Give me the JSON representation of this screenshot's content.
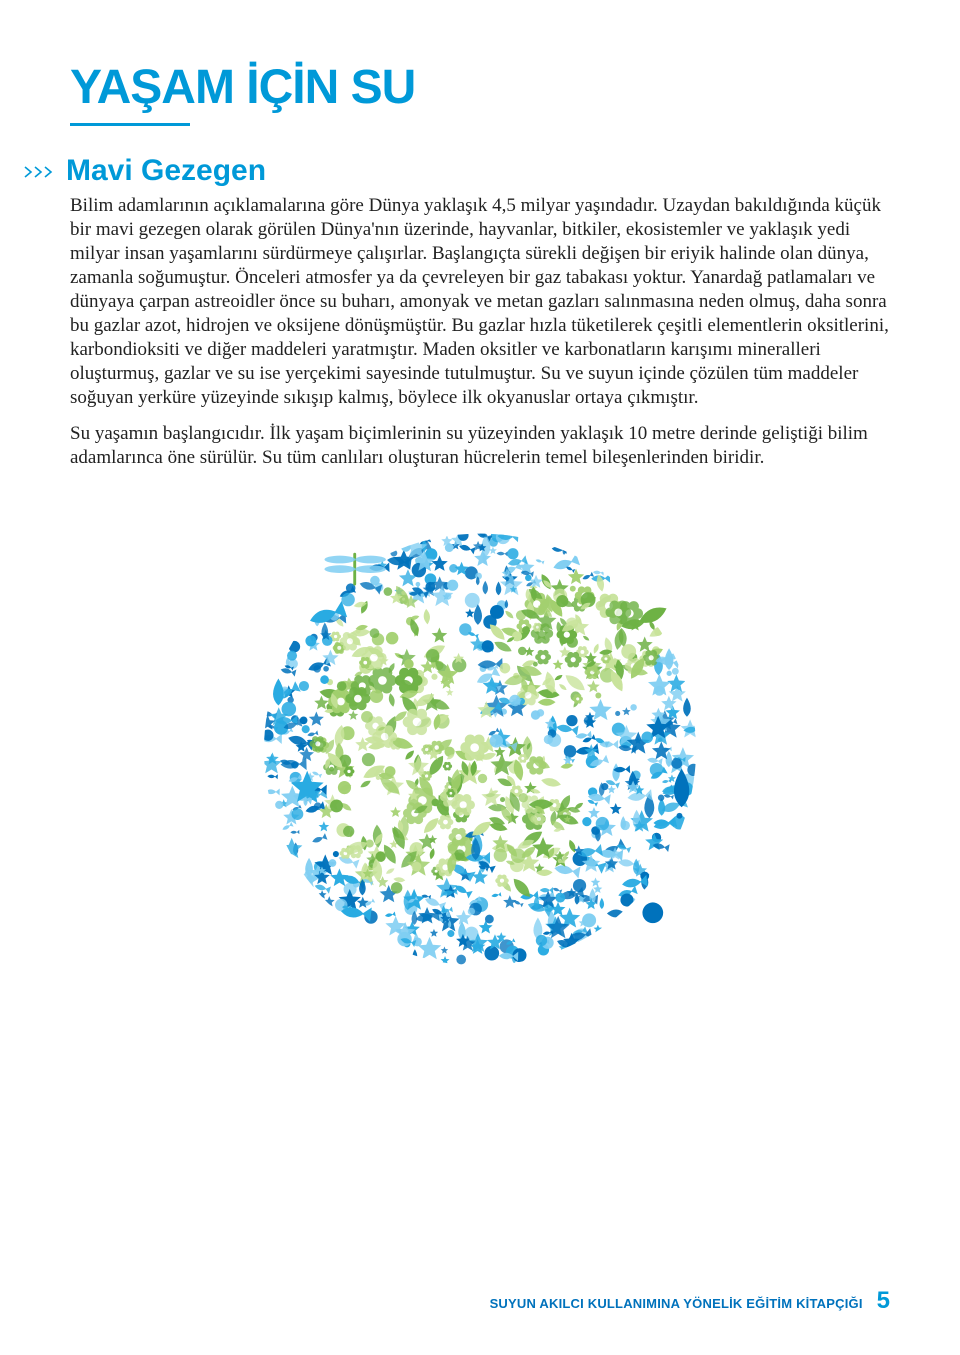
{
  "colors": {
    "accent_blue": "#0099d8",
    "body_text": "#222222",
    "footer_text": "#0072bc",
    "chevron": "#0099d8",
    "globe_blue_dark": "#0072bc",
    "globe_blue_mid": "#29abe2",
    "globe_blue_light": "#7fcef2",
    "globe_green_dark": "#6eb245",
    "globe_green_mid": "#a3d06f",
    "globe_green_light": "#c8e39b"
  },
  "typography": {
    "title_size": 48,
    "subhead_size": 30,
    "body_size": 19,
    "body_lineheight": 24,
    "footer_size": 13,
    "pagenum_size": 24
  },
  "title": "YAŞAM İÇİN SU",
  "subhead": "Mavi Gezegen",
  "paragraphs": [
    "Bilim adamlarının açıklamalarına göre Dünya yaklaşık 4,5 milyar yaşındadır. Uzaydan bakıldığında küçük bir mavi gezegen olarak görülen Dünya'nın üzerinde, hayvanlar, bitkiler, ekosistemler ve yaklaşık yedi milyar insan yaşamlarını sürdürmeye çalışırlar. Başlangıçta sürekli değişen bir eriyik halinde olan dünya, zamanla soğumuştur. Önceleri atmosfer ya da çevreleyen bir gaz tabakası yoktur. Yanardağ patlamaları ve dünyaya çarpan astreoidler önce su buharı, amonyak ve metan gazları salınmasına neden olmuş, daha sonra bu gazlar azot, hidrojen ve oksijene dönüşmüştür. Bu gazlar hızla tüketilerek çeşitli elementlerin oksitlerini, karbondioksiti ve diğer maddeleri yaratmıştır. Maden oksitler ve karbonatların karışımı mineralleri oluşturmuş, gazlar ve su ise yerçekimi sayesinde tutulmuştur. Su ve suyun içinde çözülen tüm maddeler soğuyan yerküre yüzeyinde sıkışıp kalmış, böylece ilk okyanuslar ortaya çıkmıştır.",
    "Su yaşamın başlangıcıdır. İlk yaşam biçimlerinin su yüzeyinden yaklaşık 10 metre derinde geliştiği bilim adamlarınca öne sürülür. Su tüm canlıları oluşturan hücrelerin temel bileşenlerinden biridir."
  ],
  "footer": {
    "text": "SUYUN AKILCI KULLANIMINA YÖNELİK EĞİTİM KİTAPÇIĞI",
    "page": "5"
  },
  "globe": {
    "diameter": 480,
    "background": "#ffffff"
  }
}
